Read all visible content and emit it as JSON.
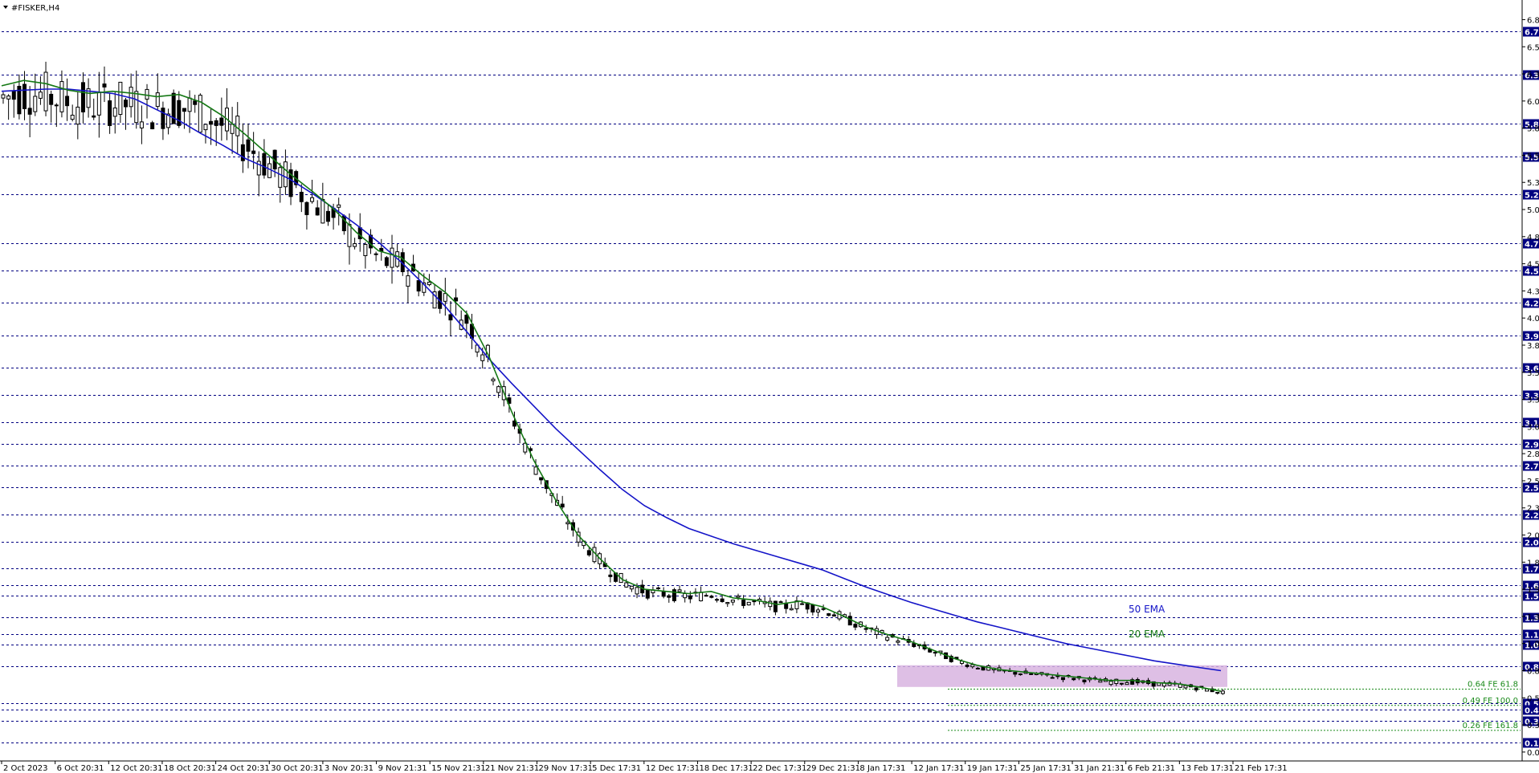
{
  "window": {
    "symbol_title": "#FISKER,H4"
  },
  "colors": {
    "ema50": "#1414c8",
    "ema20": "#147814",
    "level_line": "#000080",
    "level_label_bg": "#000080",
    "grid_box": "#d8b4e0",
    "fe_line": "#1a8a1a",
    "candle": "#000000"
  },
  "chart_data": {
    "type": "candlestick",
    "title": "#FISKER,H4",
    "ylim": [
      0.0,
      6.88
    ],
    "y_ticks": [
      "6.81",
      "6.56",
      "6.31",
      "6.06",
      "5.81",
      "5.56",
      "5.31",
      "5.06",
      "4.81",
      "4.56",
      "4.31",
      "4.06",
      "3.81",
      "3.56",
      "3.31",
      "3.06",
      "2.81",
      "2.56",
      "2.31",
      "2.06",
      "1.81",
      "1.56",
      "1.31",
      "1.06",
      "0.81",
      "0.56",
      "0.31",
      "0.06"
    ],
    "x_ticks": [
      "2 Oct 2023",
      "6 Oct 20:31",
      "12 Oct 20:31",
      "18 Oct 20:31",
      "24 Oct 20:31",
      "30 Oct 20:31",
      "3 Nov 20:31",
      "9 Nov 21:31",
      "15 Nov 21:31",
      "21 Nov 21:31",
      "29 Nov 17:31",
      "5 Dec 17:31",
      "12 Dec 17:31",
      "18 Dec 17:31",
      "22 Dec 17:31",
      "29 Dec 21:31",
      "8 Jan 17:31",
      "12 Jan 17:31",
      "19 Jan 17:31",
      "25 Jan 17:31",
      "31 Jan 21:31",
      "6 Feb 21:31",
      "13 Feb 17:31",
      "21 Feb 17:31"
    ],
    "levels": [
      "6.70",
      "6.30",
      "5.85",
      "5.55",
      "5.20",
      "4.75",
      "4.50",
      "4.20",
      "3.90",
      "3.60",
      "3.35",
      "3.10",
      "2.90",
      "2.70",
      "2.50",
      "2.25",
      "2.00",
      "1.75",
      "1.60",
      "1.50",
      "1.30",
      "1.15",
      "1.05",
      "0.85",
      "0.51",
      "0.45",
      "0.35",
      "0.15"
    ],
    "fib_levels": [
      {
        "label": "0.64 FE 61.8",
        "value": 0.64
      },
      {
        "label": "0.49 FE 100.0",
        "value": 0.49
      },
      {
        "label": "0.26 FE 161.8",
        "value": 0.26
      }
    ],
    "zone": {
      "low": 0.66,
      "high": 0.86
    },
    "series": [
      {
        "name": "50 EMA",
        "color": "#1414c8",
        "values": [
          6.15,
          6.16,
          6.17,
          6.17,
          6.15,
          6.13,
          6.08,
          5.98,
          5.88,
          5.76,
          5.65,
          5.53,
          5.44,
          5.34,
          5.21,
          5.07,
          4.92,
          4.76,
          4.58,
          4.38,
          4.17,
          3.93,
          3.68,
          3.46,
          3.25,
          3.04,
          2.85,
          2.66,
          2.48,
          2.33,
          2.22,
          2.12,
          2.05,
          1.98,
          1.92,
          1.86,
          1.8,
          1.74,
          1.66,
          1.58,
          1.51,
          1.44,
          1.38,
          1.32,
          1.26,
          1.21,
          1.16,
          1.11,
          1.06,
          1.02,
          0.98,
          0.94,
          0.9,
          0.87,
          0.84,
          0.81
        ]
      },
      {
        "name": "20 EMA",
        "color": "#147814",
        "values": [
          6.2,
          6.25,
          6.22,
          6.16,
          6.13,
          6.15,
          6.13,
          6.1,
          6.12,
          6.05,
          5.92,
          5.75,
          5.57,
          5.39,
          5.23,
          5.06,
          4.85,
          4.68,
          4.62,
          4.45,
          4.3,
          4.1,
          3.7,
          3.2,
          2.75,
          2.38,
          2.06,
          1.84,
          1.65,
          1.56,
          1.54,
          1.52,
          1.54,
          1.48,
          1.46,
          1.42,
          1.45,
          1.4,
          1.31,
          1.21,
          1.14,
          1.08,
          1.0,
          0.92,
          0.86,
          0.82,
          0.8,
          0.78,
          0.76,
          0.74,
          0.72,
          0.72,
          0.7,
          0.69,
          0.66,
          0.62
        ]
      }
    ]
  },
  "annotations": {
    "ema50_label": "50 EMA",
    "ema20_label": "20 EMA"
  }
}
